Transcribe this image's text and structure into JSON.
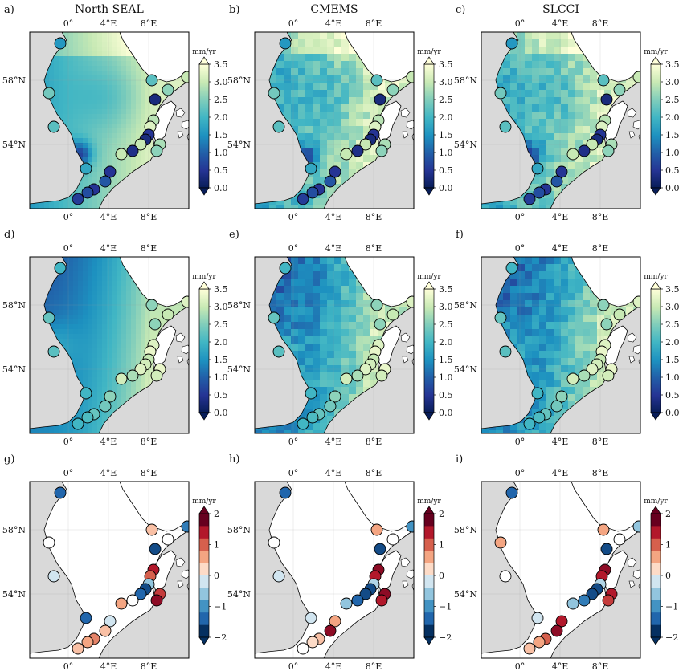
{
  "figure": {
    "column_titles": [
      "North SEAL",
      "CMEMS",
      "SLCCI"
    ],
    "panels": [
      {
        "letter": "a)",
        "row": 0,
        "col": 0
      },
      {
        "letter": "b)",
        "row": 0,
        "col": 1
      },
      {
        "letter": "c)",
        "row": 0,
        "col": 2
      },
      {
        "letter": "d)",
        "row": 1,
        "col": 0
      },
      {
        "letter": "e)",
        "row": 1,
        "col": 1
      },
      {
        "letter": "f)",
        "row": 1,
        "col": 2
      },
      {
        "letter": "g)",
        "row": 2,
        "col": 0
      },
      {
        "letter": "h)",
        "row": 2,
        "col": 1
      },
      {
        "letter": "i)",
        "row": 2,
        "col": 2
      }
    ],
    "lon_ticks": [
      "0°",
      "4°E",
      "8°E"
    ],
    "lat_ticks": [
      "58°N",
      "54°N"
    ],
    "rows": [
      {
        "colorbar": {
          "unit": "mm/yr",
          "ticks": [
            "3.5",
            "3.0",
            "2.5",
            "2.0",
            "1.5",
            "1.0",
            "0.5",
            "0.0"
          ],
          "palette": "YlGnBu",
          "range": [
            0.0,
            3.5
          ]
        }
      },
      {
        "colorbar": {
          "unit": "mm/yr",
          "ticks": [
            "3.5",
            "3.0",
            "2.5",
            "2.0",
            "1.5",
            "1.0",
            "0.5",
            "0.0"
          ],
          "palette": "YlGnBu",
          "range": [
            0.0,
            3.5
          ]
        }
      },
      {
        "colorbar": {
          "unit": "mm/yr",
          "ticks": [
            "2",
            "1",
            "0",
            "−1",
            "−2"
          ],
          "palette": "RdBu_r",
          "range": [
            -2,
            2
          ]
        }
      }
    ],
    "colors": {
      "land": "#d9d9d9",
      "sea_white": "#ffffff",
      "coast": "#000000"
    }
  }
}
